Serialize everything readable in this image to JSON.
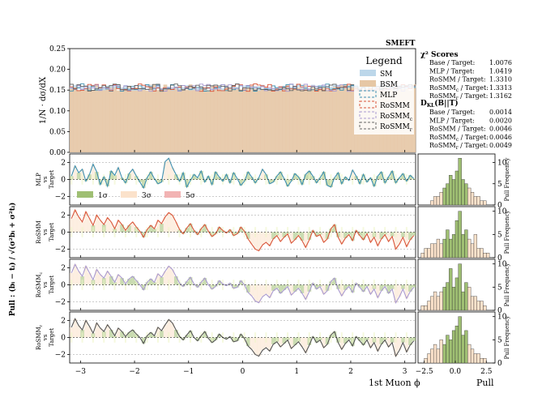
{
  "chart_data": {
    "type": "histogram-with-pull-panels",
    "label": "SMEFT",
    "xlabel": "1st Muon ϕ",
    "x_ticks": [
      "−3",
      "−2",
      "−1",
      "0",
      "1",
      "2",
      "3"
    ],
    "x_tick_values": [
      -3,
      -2,
      -1,
      0,
      1,
      2,
      3
    ],
    "xlim": [
      -3.2,
      3.2
    ],
    "main": {
      "ylabel": "1/N · dσ/dX",
      "ylim": [
        0.0,
        0.25
      ],
      "y_ticks": [
        "0.00",
        "0.05",
        "0.10",
        "0.15",
        "0.20",
        "0.25"
      ],
      "y_tick_values": [
        0.0,
        0.05,
        0.1,
        0.15,
        0.2,
        0.25
      ],
      "nbins": 96,
      "mean_value": 0.156,
      "series": [
        {
          "name": "SM",
          "color": "#bcd7ea",
          "style": "fill"
        },
        {
          "name": "BSM",
          "color": "#e6c7a5",
          "style": "fill"
        },
        {
          "name": "MLP",
          "color": "#3d8fb0",
          "style": "dashed"
        },
        {
          "name": "RoSMM",
          "color": "#d9553a",
          "style": "dashed"
        },
        {
          "name": "RoSMM",
          "sub": "c",
          "color": "#a99ad0",
          "style": "dashed"
        },
        {
          "name": "RoSMM",
          "sub": "r",
          "color": "#666666",
          "style": "dashed"
        }
      ],
      "legend_title": "Legend"
    },
    "scores": {
      "chi2_title": "χ² Scores",
      "chi2": [
        {
          "label": "Base / Target:",
          "value": "1.0076"
        },
        {
          "label": "MLP / Target:",
          "value": "1.0419"
        },
        {
          "label": "RoSMM / Target:",
          "value": "1.3310"
        },
        {
          "label": "RoSMM",
          "sub": "c",
          "suffix": " / Target:",
          "value": "1.3313"
        },
        {
          "label": "RoSMM",
          "sub": "r",
          "suffix": " / Target:",
          "value": "1.3162"
        }
      ],
      "ks_title": "D",
      "ks_sub": "KL",
      "ks_suffix": "(B||T)",
      "ks": [
        {
          "label": "Base / Target:",
          "value": "0.0014"
        },
        {
          "label": "MLP / Target:",
          "value": "0.0020"
        },
        {
          "label": "RoSMM / Target:",
          "value": "0.0046"
        },
        {
          "label": "RoSMM",
          "sub": "c",
          "suffix": " / Target:",
          "value": "0.0046"
        },
        {
          "label": "RoSMM",
          "sub": "r",
          "suffix": " / Target:",
          "value": "0.0049"
        }
      ]
    },
    "pull": {
      "ylabel": "Pull : (bᵢ − tᵢ) / √(σ²bᵢ + σ²tᵢ)",
      "ylim": [
        -3,
        3
      ],
      "y_ticks": [
        "−2",
        "0",
        "2"
      ],
      "y_tick_values": [
        -2,
        0,
        2
      ],
      "sigma_legend": [
        {
          "label": "1σ",
          "color": "#9fbf73"
        },
        {
          "label": "3σ",
          "color": "#fbe2cb"
        },
        {
          "label": "5σ",
          "color": "#f2b3b3"
        }
      ],
      "panels": [
        {
          "name": "MLP",
          "sub": "",
          "color": "#3d8fb0",
          "vs": "vs",
          "target": "Target",
          "values": [
            0.4,
            1.6,
            0.8,
            1.2,
            -0.2,
            0.6,
            1.8,
            0.9,
            -0.6,
            0.3,
            -0.8,
            1.0,
            0.5,
            1.4,
            0.2,
            -0.4,
            0.7,
            1.2,
            0.4,
            -0.3,
            -1.0,
            0.2,
            0.9,
            0.1,
            -0.5,
            -0.3,
            2.1,
            2.5,
            1.4,
            0.6,
            -0.2,
            0.8,
            -0.9,
            -0.1,
            0.6,
            0.2,
            1.0,
            -0.3,
            0.4,
            -0.6,
            0.9,
            0.3,
            -0.2,
            0.6,
            -0.4,
            0.8,
            0.1,
            -0.7,
            -0.2,
            0.9,
            0.3,
            -0.4,
            0.2,
            1.2,
            0.6,
            -0.5,
            -0.3,
            0.4,
            0.9,
            0.1,
            -0.8,
            -0.2,
            0.7,
            0.3,
            -0.6,
            0.6,
            1.0,
            0.4,
            -0.4,
            0.2,
            0.9,
            -0.7,
            -0.9,
            0.2,
            0.8,
            -0.5,
            0.3,
            -0.1,
            1.1,
            0.4,
            -0.5,
            0.6,
            -0.3,
            0.2,
            -0.8,
            0.4,
            0.9,
            -0.4,
            0.3,
            1.0,
            -0.4,
            0.2,
            0.7,
            -0.2,
            0.5,
            0.1
          ],
          "hist_bins": [
            -3,
            -2.75,
            -2.5,
            -2.25,
            -2,
            -1.75,
            -1.5,
            -1.25,
            -1,
            -0.75,
            -0.5,
            -0.25,
            0,
            0.25,
            0.5,
            0.75,
            1,
            1.25,
            1.5,
            1.75,
            2,
            2.25,
            2.5,
            2.75
          ],
          "hist_counts": [
            0,
            0,
            0,
            0,
            1,
            2,
            2,
            3,
            4,
            5,
            7,
            6,
            8,
            11,
            6,
            5,
            4,
            3,
            2,
            2,
            1,
            1,
            0
          ],
          "hist_ylim": [
            0,
            12
          ],
          "hist_ticks": [
            0,
            5,
            10
          ]
        },
        {
          "name": "RoSMM",
          "sub": "",
          "color": "#d9553a",
          "vs": "vs",
          "target": "Target",
          "values": [
            1.6,
            2.6,
            1.8,
            1.2,
            2.4,
            1.6,
            0.8,
            2.0,
            1.4,
            0.9,
            1.7,
            1.2,
            0.4,
            1.4,
            0.9,
            0.2,
            0.8,
            1.2,
            0.6,
            0.1,
            -0.6,
            0.3,
            0.8,
            0.4,
            1.4,
            1.0,
            1.8,
            2.3,
            2.0,
            1.2,
            0.3,
            -0.2,
            0.5,
            1.0,
            0.2,
            -0.3,
            0.4,
            0.9,
            0.1,
            -0.5,
            -0.2,
            0.6,
            0.2,
            -0.1,
            0.3,
            -0.4,
            -0.2,
            0.6,
            0.1,
            -0.8,
            -1.4,
            -2.0,
            -2.2,
            -1.5,
            -1.2,
            -1.6,
            -0.8,
            -0.4,
            -1.1,
            -0.6,
            -0.2,
            -1.3,
            -0.9,
            -0.4,
            -1.0,
            -1.8,
            -0.9,
            0.2,
            -0.5,
            -0.3,
            -1.2,
            -0.8,
            0.4,
            0.9,
            -0.6,
            -1.4,
            -0.7,
            -0.3,
            -1.0,
            0.2,
            -0.4,
            -0.9,
            -0.2,
            -1.2,
            -0.6,
            -1.6,
            -0.8,
            -0.3,
            -1.1,
            -0.5,
            -2.0,
            -1.4,
            -0.6,
            -1.7,
            -0.9,
            -0.4
          ],
          "hist_bins": [
            -3,
            -2.75,
            -2.5,
            -2.25,
            -2,
            -1.75,
            -1.5,
            -1.25,
            -1,
            -0.75,
            -0.5,
            -0.25,
            0,
            0.25,
            0.5,
            0.75,
            1,
            1.25,
            1.5,
            1.75,
            2,
            2.25,
            2.5,
            2.75
          ],
          "hist_counts": [
            0,
            1,
            2,
            2,
            3,
            3,
            4,
            3,
            4,
            6,
            4,
            5,
            8,
            10,
            5,
            6,
            4,
            3,
            5,
            2,
            2,
            1,
            1
          ],
          "hist_ylim": [
            0,
            11
          ],
          "hist_ticks": [
            0,
            5,
            10
          ]
        },
        {
          "name": "RoSMM",
          "sub": "c",
          "color": "#a99ad0",
          "vs": "vs",
          "target": "Target",
          "values": [
            1.4,
            2.4,
            1.6,
            1.0,
            2.2,
            1.4,
            0.6,
            1.8,
            1.2,
            0.8,
            1.6,
            1.0,
            0.3,
            1.2,
            0.8,
            0.1,
            0.7,
            1.0,
            0.5,
            0.0,
            -0.6,
            0.3,
            0.7,
            0.3,
            1.3,
            0.9,
            1.6,
            2.2,
            1.8,
            1.0,
            0.2,
            -0.2,
            0.4,
            0.9,
            0.1,
            -0.3,
            0.3,
            0.8,
            0.0,
            -0.5,
            -0.2,
            0.5,
            0.1,
            -0.1,
            0.2,
            -0.4,
            -0.3,
            0.5,
            0.0,
            -0.9,
            -1.3,
            -1.9,
            -2.1,
            -1.4,
            -1.1,
            -1.5,
            -0.7,
            -0.4,
            -1.0,
            -0.6,
            -0.2,
            -1.2,
            -0.8,
            -0.4,
            -1.0,
            -1.7,
            -0.8,
            0.2,
            -0.5,
            -0.2,
            -1.1,
            -0.7,
            0.4,
            0.8,
            -0.5,
            -1.3,
            -0.6,
            -0.2,
            -0.9,
            0.2,
            -0.3,
            -0.8,
            -0.2,
            -1.1,
            -0.5,
            -1.5,
            -0.7,
            -0.2,
            -1.0,
            -0.5,
            -2.1,
            -1.4,
            -0.5,
            -1.6,
            -0.8,
            -0.3
          ],
          "hist_bins": [
            -3,
            -2.75,
            -2.5,
            -2.25,
            -2,
            -1.75,
            -1.5,
            -1.25,
            -1,
            -0.75,
            -0.5,
            -0.25,
            0,
            0.25,
            0.5,
            0.75,
            1,
            1.25,
            1.5,
            1.75,
            2,
            2.25,
            2.5,
            2.75
          ],
          "hist_counts": [
            0,
            1,
            1,
            2,
            3,
            4,
            3,
            4,
            5,
            6,
            9,
            5,
            7,
            10,
            4,
            6,
            5,
            3,
            3,
            2,
            2,
            1,
            0
          ],
          "hist_ylim": [
            0,
            11
          ],
          "hist_ticks": [
            0,
            5,
            10
          ]
        },
        {
          "name": "RoSMM",
          "sub": "r",
          "color": "#555555",
          "vs": "vs",
          "target": "Target",
          "values": [
            1.2,
            2.2,
            1.4,
            0.9,
            2.0,
            1.3,
            0.5,
            1.7,
            1.1,
            0.7,
            1.5,
            0.9,
            0.2,
            1.1,
            0.7,
            0.1,
            0.6,
            0.9,
            0.4,
            0.0,
            -0.7,
            0.2,
            0.6,
            0.2,
            1.2,
            0.8,
            1.5,
            2.1,
            1.7,
            0.9,
            0.1,
            -0.3,
            0.3,
            0.8,
            0.0,
            -0.4,
            0.2,
            0.7,
            -0.1,
            -0.6,
            -0.3,
            0.4,
            0.0,
            -0.2,
            0.1,
            -0.5,
            -0.4,
            0.4,
            -0.1,
            -1.0,
            -1.4,
            -2.0,
            -2.2,
            -1.5,
            -1.2,
            -1.6,
            -0.8,
            -0.5,
            -1.1,
            -0.7,
            -0.3,
            -1.3,
            -0.9,
            -0.5,
            -1.1,
            -1.8,
            -0.9,
            0.1,
            -0.6,
            -0.3,
            -1.2,
            -0.8,
            0.3,
            0.7,
            -0.6,
            -1.4,
            -0.7,
            -0.3,
            -1.0,
            0.1,
            -0.4,
            -0.9,
            -0.3,
            -1.2,
            -0.6,
            -1.6,
            -0.8,
            -0.3,
            -1.1,
            -0.6,
            -2.2,
            -1.5,
            -0.6,
            -1.7,
            -0.9,
            -0.4
          ],
          "hist_bins": [
            -3,
            -2.75,
            -2.5,
            -2.25,
            -2,
            -1.75,
            -1.5,
            -1.25,
            -1,
            -0.75,
            -0.5,
            -0.25,
            0,
            0.25,
            0.5,
            0.75,
            1,
            1.25,
            1.5,
            1.75,
            2,
            2.25,
            2.5,
            2.75
          ],
          "hist_counts": [
            0,
            0,
            1,
            2,
            3,
            4,
            3,
            5,
            4,
            6,
            5,
            7,
            8,
            10,
            6,
            7,
            4,
            3,
            2,
            2,
            1,
            1,
            0
          ],
          "hist_ylim": [
            0,
            11
          ],
          "hist_ticks": [
            0,
            5,
            10
          ]
        }
      ],
      "hist_xlabel": "Pull",
      "hist_ylabel": "Pull Frequency",
      "hist_x_ticks": [
        "−2.5",
        "0.0",
        "2.5"
      ],
      "hist_x_tick_values": [
        -2.5,
        0.0,
        2.5
      ],
      "hist_xlim": [
        -3.0,
        3.2
      ]
    }
  }
}
